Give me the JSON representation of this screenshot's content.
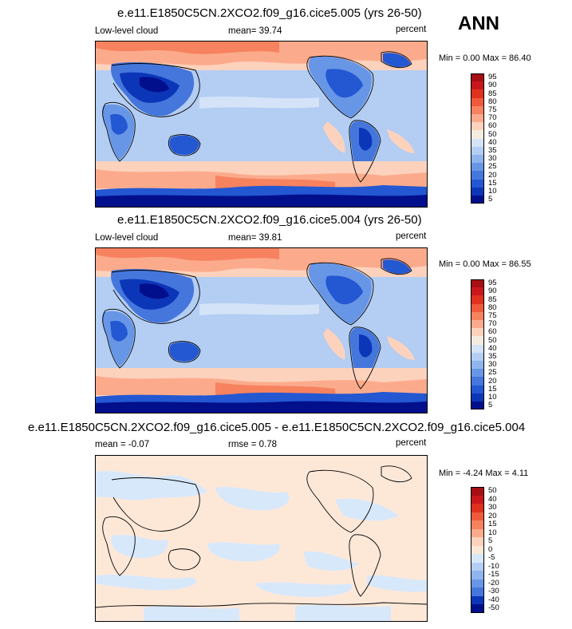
{
  "season": "ANN",
  "panels": [
    {
      "id": "p1",
      "title": "e.e11.E1850C5CN.2XCO2.f09_g16.cice5.005 (yrs 26-50)",
      "left_label": "Low-level cloud",
      "center_label": "mean=  39.74",
      "right_label": "percent",
      "minmax": "Min =   0.00 Max =  86.40",
      "kind": "field",
      "colorbar": [
        "95",
        "90",
        "85",
        "80",
        "75",
        "70",
        "60",
        "50",
        "40",
        "35",
        "30",
        "25",
        "20",
        "15",
        "10",
        "5"
      ]
    },
    {
      "id": "p2",
      "title": "e.e11.E1850C5CN.2XCO2.f09_g16.cice5.004 (yrs 26-50)",
      "left_label": "Low-level cloud",
      "center_label": "mean=  39.81",
      "right_label": "percent",
      "minmax": "Min =   0.00 Max =  86.55",
      "kind": "field",
      "colorbar": [
        "95",
        "90",
        "85",
        "80",
        "75",
        "70",
        "60",
        "50",
        "40",
        "35",
        "30",
        "25",
        "20",
        "15",
        "10",
        "5"
      ]
    },
    {
      "id": "p3",
      "title": "e.e11.E1850C5CN.2XCO2.f09_g16.cice5.005 - e.e11.E1850C5CN.2XCO2.f09_g16.cice5.004",
      "left_label": "mean =  -0.07",
      "center_label": "rmse =   0.78",
      "right_label": "percent",
      "minmax": "Min =  -4.24 Max =   4.11",
      "kind": "diff",
      "colorbar": [
        "50",
        "40",
        "30",
        "20",
        "15",
        "10",
        "5",
        "0",
        "-5",
        "-10",
        "-15",
        "-20",
        "-30",
        "-40",
        "-50"
      ]
    }
  ],
  "colors": {
    "field_scale": [
      "#a50f15",
      "#c8181e",
      "#e0301e",
      "#ef5a3c",
      "#f6825f",
      "#fbab8c",
      "#fdd2bd",
      "#f5ecdf",
      "#d4e3f7",
      "#b3cdf3",
      "#8fb4ee",
      "#6896e6",
      "#4576dc",
      "#2457d2",
      "#0c36b8",
      "#020f8c"
    ],
    "diff_scale": [
      "#a50f15",
      "#c8181e",
      "#e0301e",
      "#ef5a3c",
      "#f6825f",
      "#fbab8c",
      "#fdd2bd",
      "#fde8d8",
      "#d8e8fb",
      "#b3cdf3",
      "#8fb4ee",
      "#6896e6",
      "#4576dc",
      "#0c36b8",
      "#020f8c"
    ]
  }
}
